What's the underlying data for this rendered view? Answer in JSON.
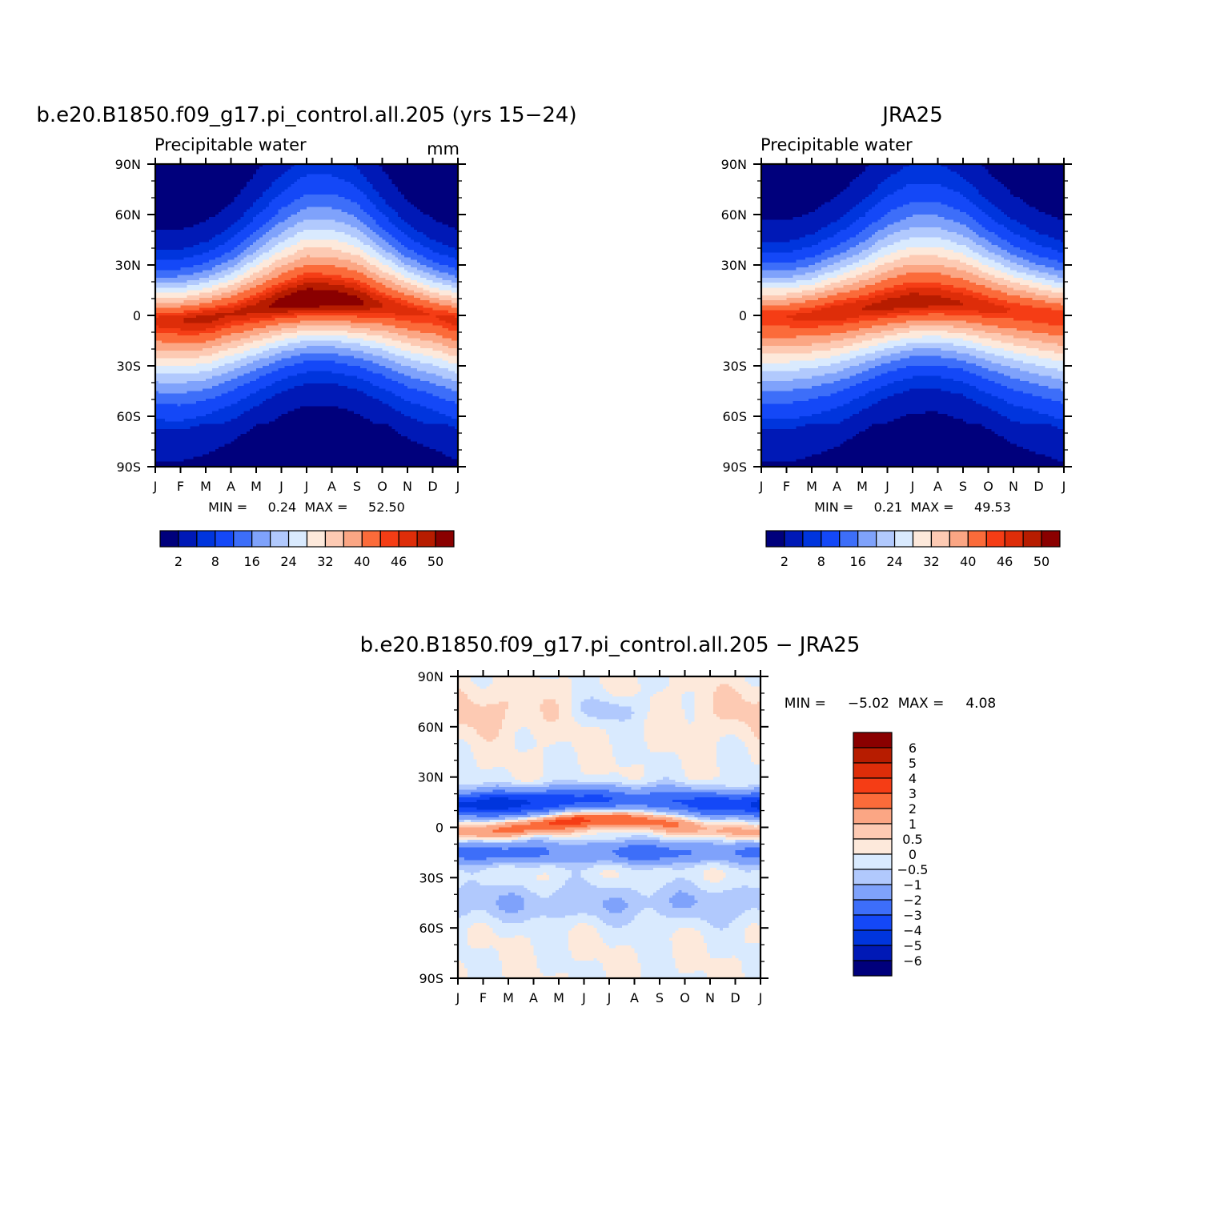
{
  "figure": {
    "panels": [
      {
        "id": "model",
        "title": "b.e20.B1850.f09_g17.pi_control.all.205 (yrs 15-24)",
        "left_label": "Precipitable  water",
        "right_label": "mm",
        "stats": "MIN =     0.24  MAX =     52.50",
        "chart_data": {
          "type": "heatmap",
          "title": "b.e20.B1850.f09_g17.pi_control.all.205 (yrs 15-24)",
          "variable": "Precipitable  water",
          "units": "mm",
          "x_ticks": [
            "J",
            "F",
            "M",
            "A",
            "M",
            "J",
            "J",
            "A",
            "S",
            "O",
            "N",
            "D",
            "J"
          ],
          "y_ticks": [
            "90N",
            "60N",
            "30N",
            "0",
            "30S",
            "60S",
            "90S"
          ],
          "xlim": [
            0,
            12
          ],
          "ylim": [
            -90,
            90
          ],
          "min": 0.24,
          "max": 52.5,
          "structure": {
            "itcz_peak_lat": [
              -3,
              -3,
              -2,
              1,
              4,
              7,
              9,
              9,
              8,
              6,
              3,
              0,
              -3
            ],
            "peak_value": [
              47,
              48,
              49,
              48,
              49,
              51,
              52.5,
              52,
              51,
              48,
              47,
              46,
              47
            ],
            "nh_width": [
              14,
              14,
              15,
              17,
              21,
              25,
              28,
              28,
              26,
              21,
              17,
              15,
              14
            ],
            "sh_width": [
              23,
              23,
              22,
              21,
              19,
              17,
              16,
              16,
              17,
              19,
              21,
              22,
              23
            ]
          }
        },
        "colorbar": {
          "levels": [
            0,
            2,
            5,
            8,
            12,
            16,
            20,
            24,
            28,
            32,
            36,
            40,
            44,
            46,
            48,
            50,
            55
          ],
          "colors": [
            "#00007c",
            "#0019b6",
            "#0035dd",
            "#1448f7",
            "#3d6ef9",
            "#7fa2fb",
            "#b1c9fd",
            "#d9eafe",
            "#fde9db",
            "#fdcab3",
            "#fba684",
            "#fb6b3a",
            "#f53d15",
            "#de2d09",
            "#b71c00",
            "#8a0000"
          ],
          "labels": [
            "2",
            "8",
            "16",
            "24",
            "32",
            "40",
            "46",
            "50"
          ],
          "label_levels": [
            2,
            8,
            16,
            24,
            32,
            40,
            46,
            50
          ]
        }
      },
      {
        "id": "obs",
        "title": "JRA25",
        "left_label": "Precipitable  water",
        "right_label": "",
        "stats": "MIN =     0.21  MAX =     49.53",
        "chart_data": {
          "type": "heatmap",
          "title": "JRA25",
          "variable": "Precipitable  water",
          "x_ticks": [
            "J",
            "F",
            "M",
            "A",
            "M",
            "J",
            "J",
            "A",
            "S",
            "O",
            "N",
            "D",
            "J"
          ],
          "y_ticks": [
            "90N",
            "60N",
            "30N",
            "0",
            "30S",
            "60S",
            "90S"
          ],
          "xlim": [
            0,
            12
          ],
          "ylim": [
            -90,
            90
          ],
          "min": 0.21,
          "max": 49.53,
          "structure": {
            "itcz_peak_lat": [
              -1,
              -1,
              0,
              2,
              4,
              6,
              8,
              8,
              7,
              5,
              3,
              1,
              -1
            ],
            "peak_value": [
              46,
              46,
              47,
              48,
              48,
              49,
              49.5,
              49,
              48,
              47,
              46,
              46,
              46
            ],
            "nh_width": [
              15,
              15,
              16,
              18,
              21,
              25,
              27,
              27,
              25,
              21,
              18,
              16,
              15
            ],
            "sh_width": [
              24,
              24,
              23,
              22,
              20,
              18,
              17,
              17,
              18,
              20,
              22,
              23,
              24
            ]
          }
        },
        "colorbar": {
          "levels": [
            0,
            2,
            5,
            8,
            12,
            16,
            20,
            24,
            28,
            32,
            36,
            40,
            44,
            46,
            48,
            50,
            55
          ],
          "colors": [
            "#00007c",
            "#0019b6",
            "#0035dd",
            "#1448f7",
            "#3d6ef9",
            "#7fa2fb",
            "#b1c9fd",
            "#d9eafe",
            "#fde9db",
            "#fdcab3",
            "#fba684",
            "#fb6b3a",
            "#f53d15",
            "#de2d09",
            "#b71c00",
            "#8a0000"
          ],
          "labels": [
            "2",
            "8",
            "16",
            "24",
            "32",
            "40",
            "46",
            "50"
          ],
          "label_levels": [
            2,
            8,
            16,
            24,
            32,
            40,
            46,
            50
          ]
        }
      },
      {
        "id": "diff",
        "title": "b.e20.B1850.f09_g17.pi_control.all.205 - JRA25",
        "left_label": "",
        "right_label": "",
        "stats": "MIN =     -5.02  MAX =     4.08",
        "chart_data": {
          "type": "heatmap",
          "title": "b.e20.B1850.f09_g17.pi_control.all.205 - JRA25",
          "x_ticks": [
            "J",
            "F",
            "M",
            "A",
            "M",
            "J",
            "J",
            "A",
            "S",
            "O",
            "N",
            "D",
            "J"
          ],
          "y_ticks": [
            "90N",
            "60N",
            "30N",
            "0",
            "30S",
            "60S",
            "90S"
          ],
          "xlim": [
            0,
            12
          ],
          "ylim": [
            -90,
            90
          ],
          "min": -5.02,
          "max": 4.08
        },
        "colorbar": {
          "levels": [
            -7,
            -6,
            -5,
            -4,
            -3,
            -2,
            -1,
            -0.5,
            0,
            0.5,
            1,
            2,
            3,
            4,
            5,
            6,
            7
          ],
          "colors": [
            "#00007c",
            "#0019b6",
            "#0035dd",
            "#1448f7",
            "#3d6ef9",
            "#7fa2fb",
            "#b1c9fd",
            "#d9eafe",
            "#fde9db",
            "#fdcab3",
            "#fba684",
            "#fb6b3a",
            "#f53d15",
            "#de2d09",
            "#b71c00",
            "#8a0000"
          ],
          "labels": [
            "6",
            "5",
            "4",
            "3",
            "2",
            "1",
            "0.5",
            "0",
            "-0.5",
            "-1",
            "-2",
            "-3",
            "-4",
            "-5",
            "-6"
          ]
        }
      }
    ]
  }
}
